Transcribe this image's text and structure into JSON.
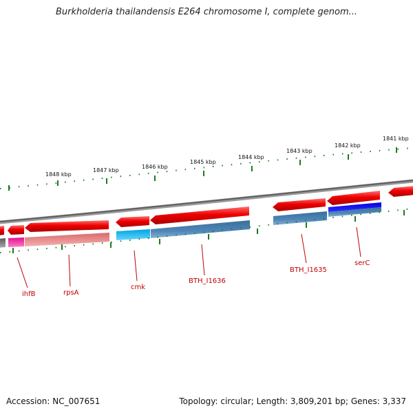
{
  "header": {
    "title": "Burkholderia thailandensis E264 chromosome I, complete genom..."
  },
  "footer": {
    "accession": "Accession: NC_007651",
    "summary": "Topology: circular; Length: 3,809,201 bp; Genes: 3,337"
  },
  "scale_labels": [
    {
      "text": "1848 kbp"
    },
    {
      "text": "1847 kbp"
    },
    {
      "text": "1846 kbp"
    },
    {
      "text": "1845 kbp"
    },
    {
      "text": "1844 kbp"
    },
    {
      "text": "1843 kbp"
    },
    {
      "text": "1842 kbp"
    },
    {
      "text": "1841 kbp"
    }
  ],
  "gene_labels": [
    {
      "text": "ihfB"
    },
    {
      "text": "rpsA"
    },
    {
      "text": "cmk"
    },
    {
      "text": "BTH_I1636"
    },
    {
      "text": "BTH_I1635"
    },
    {
      "text": "serC"
    }
  ],
  "colors": {
    "cds_red": "#e00000",
    "tick_green": "#1a7a1a",
    "backbone_gray": "#7a7a7a",
    "label_red": "#c00000",
    "steel_blue": "#4682b4",
    "cyan": "#00aeef",
    "magenta": "#e8189a",
    "salmon": "#e88080",
    "navy_blue": "#0000c8"
  }
}
